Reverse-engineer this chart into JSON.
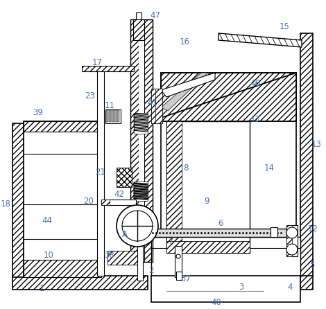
{
  "bg_color": "#ffffff",
  "lc": "#000000",
  "lbl": "#4472c4",
  "fs": 8.5,
  "fw": 4.7,
  "fh": 4.46,
  "dpi": 100,
  "labels": [
    [
      1,
      60,
      416
    ],
    [
      2,
      218,
      390
    ],
    [
      3,
      348,
      415
    ],
    [
      4,
      418,
      415
    ],
    [
      5,
      450,
      383
    ],
    [
      6,
      318,
      323
    ],
    [
      7,
      247,
      348
    ],
    [
      8,
      268,
      242
    ],
    [
      9,
      298,
      290
    ],
    [
      10,
      70,
      368
    ],
    [
      11,
      158,
      153
    ],
    [
      12,
      451,
      330
    ],
    [
      13,
      456,
      208
    ],
    [
      14,
      388,
      243
    ],
    [
      15,
      410,
      38
    ],
    [
      16,
      266,
      60
    ],
    [
      17,
      140,
      90
    ],
    [
      18,
      8,
      295
    ],
    [
      20,
      128,
      290
    ],
    [
      21,
      145,
      248
    ],
    [
      23,
      130,
      138
    ],
    [
      37,
      268,
      402
    ],
    [
      38,
      158,
      368
    ],
    [
      39,
      55,
      162
    ],
    [
      40,
      312,
      437
    ],
    [
      41,
      220,
      148
    ],
    [
      42,
      172,
      280
    ],
    [
      43,
      367,
      172
    ],
    [
      44,
      68,
      318
    ],
    [
      46,
      368,
      120
    ],
    [
      47,
      224,
      22
    ],
    [
      "A",
      180,
      338
    ]
  ]
}
